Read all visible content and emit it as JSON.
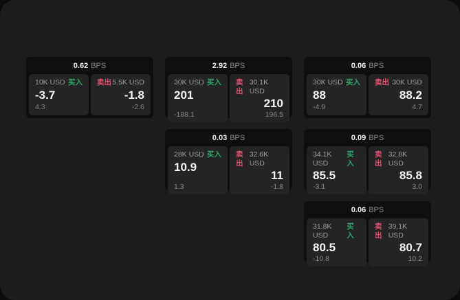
{
  "labels": {
    "buy": "买入",
    "sell": "卖出",
    "bps": "BPS"
  },
  "colors": {
    "buy_green": "#2fa566",
    "sell_red": "#e0516d",
    "window_bg": "#1d1d1d",
    "card_bg": "#0f0f0f",
    "panel_bg": "#242424"
  },
  "cards": [
    {
      "bps": "0.62",
      "buy": {
        "amount": "10K USD",
        "value": "-3.7",
        "sub": "4.3"
      },
      "sell": {
        "amount": "5.5K USD",
        "value": "-1.8",
        "sub": "-2.6"
      }
    },
    {
      "bps": "2.92",
      "buy": {
        "amount": "30K USD",
        "value": "201",
        "sub": "-188.1"
      },
      "sell": {
        "amount": "30.1K USD",
        "value": "210",
        "sub": "196.5"
      }
    },
    {
      "bps": "0.06",
      "buy": {
        "amount": "30K USD",
        "value": "88",
        "sub": "-4.9"
      },
      "sell": {
        "amount": "30K USD",
        "value": "88.2",
        "sub": "4.7"
      }
    },
    {
      "bps": "0.03",
      "buy": {
        "amount": "28K USD",
        "value": "10.9",
        "sub": "1.3"
      },
      "sell": {
        "amount": "32.6K USD",
        "value": "11",
        "sub": "-1.8"
      }
    },
    {
      "bps": "0.09",
      "buy": {
        "amount": "34.1K USD",
        "value": "85.5",
        "sub": "-3.1"
      },
      "sell": {
        "amount": "32.8K USD",
        "value": "85.8",
        "sub": "3.0"
      }
    },
    {
      "bps": "0.06",
      "buy": {
        "amount": "31.8K USD",
        "value": "80.5",
        "sub": "-10.8"
      },
      "sell": {
        "amount": "39.1K USD",
        "value": "80.7",
        "sub": "10.2"
      }
    }
  ]
}
